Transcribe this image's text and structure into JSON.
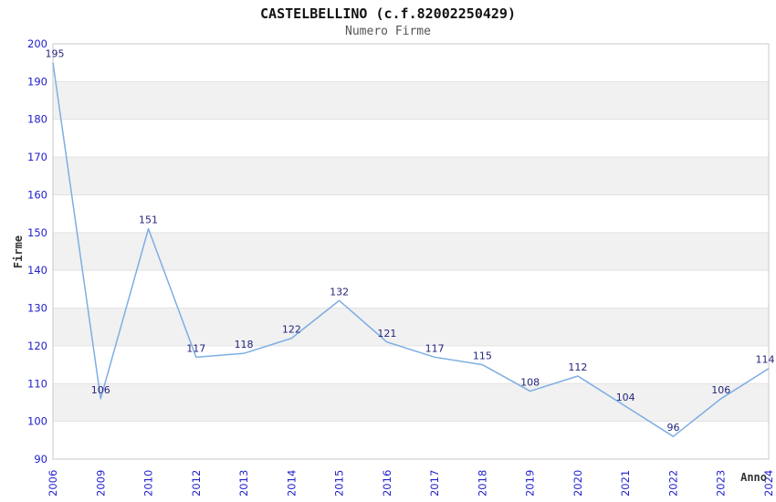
{
  "page": {
    "background": "#ffffff"
  },
  "chart_data": {
    "type": "line",
    "title": "CASTELBELLINO (c.f.82002250429)",
    "subtitle": "Numero Firme",
    "xlabel": "Anno",
    "ylabel": "Firme",
    "categories": [
      "2006",
      "2009",
      "2010",
      "2012",
      "2013",
      "2014",
      "2015",
      "2016",
      "2017",
      "2018",
      "2019",
      "2020",
      "2021",
      "2022",
      "2023",
      "2024"
    ],
    "values": [
      195,
      106,
      151,
      117,
      118,
      122,
      132,
      121,
      117,
      115,
      108,
      112,
      104,
      96,
      106,
      114
    ],
    "data_labels_shown": true,
    "ylim": [
      90,
      200
    ],
    "yticks": [
      90,
      100,
      110,
      120,
      130,
      140,
      150,
      160,
      170,
      180,
      190,
      200
    ],
    "grid": "horizontal alternating bands, gray bands at 100-110, 120-130, 140-150, 160-170, 180-190",
    "legend_position": "none",
    "colors": {
      "line": "#7daee3",
      "tick_label": "#2121cd",
      "data_label": "#24247d",
      "band_gray": "#f1f1f1",
      "grid_line": "#e2e2e2",
      "plot_border": "#c9c9c9",
      "title": "#111111",
      "subtitle": "#555555",
      "axis_title": "#333333",
      "plot_background": "#ffffff"
    }
  }
}
